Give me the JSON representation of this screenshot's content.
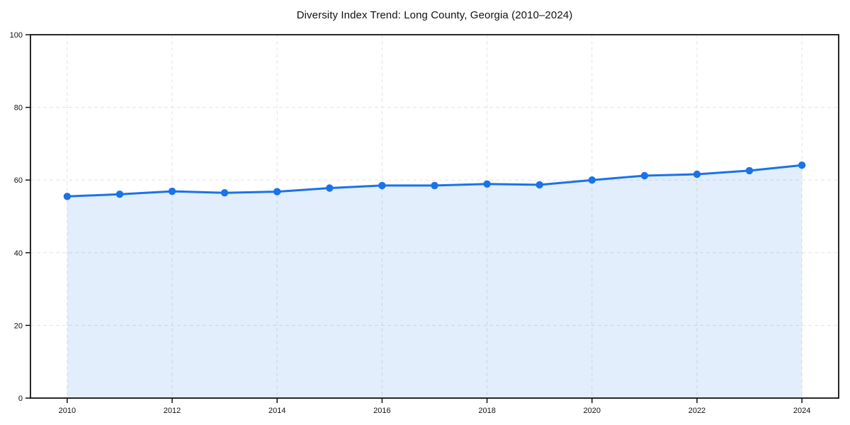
{
  "page": {
    "background_color": "#ffffff"
  },
  "chart_data": {
    "type": "area",
    "title": "Diversity Index Trend: Long County, Georgia (2010–2024)",
    "xlabel": "",
    "ylabel": "",
    "x": [
      2010,
      2011,
      2012,
      2013,
      2014,
      2015,
      2016,
      2017,
      2018,
      2019,
      2020,
      2021,
      2022,
      2023,
      2024
    ],
    "series": [
      {
        "name": "Diversity Index",
        "values": [
          55.5,
          56.1,
          56.9,
          56.5,
          56.8,
          57.8,
          58.5,
          58.5,
          58.9,
          58.7,
          60.0,
          61.2,
          61.6,
          62.6,
          64.1
        ]
      }
    ],
    "xticks": [
      2010,
      2012,
      2014,
      2016,
      2018,
      2020,
      2022,
      2024
    ],
    "yticks": [
      0,
      20,
      40,
      60,
      80,
      100
    ],
    "xlim": [
      2009.3,
      2024.7
    ],
    "ylim": [
      0,
      100
    ],
    "grid": true,
    "grid_style": "dashed",
    "legend": false,
    "colors": {
      "line": "#1a73e8",
      "marker": "#1a73e8",
      "area_fill": "rgba(26,115,232,0.12)",
      "gridline": "#e3e3e3",
      "axis": "#111111",
      "text": "#111111"
    }
  }
}
